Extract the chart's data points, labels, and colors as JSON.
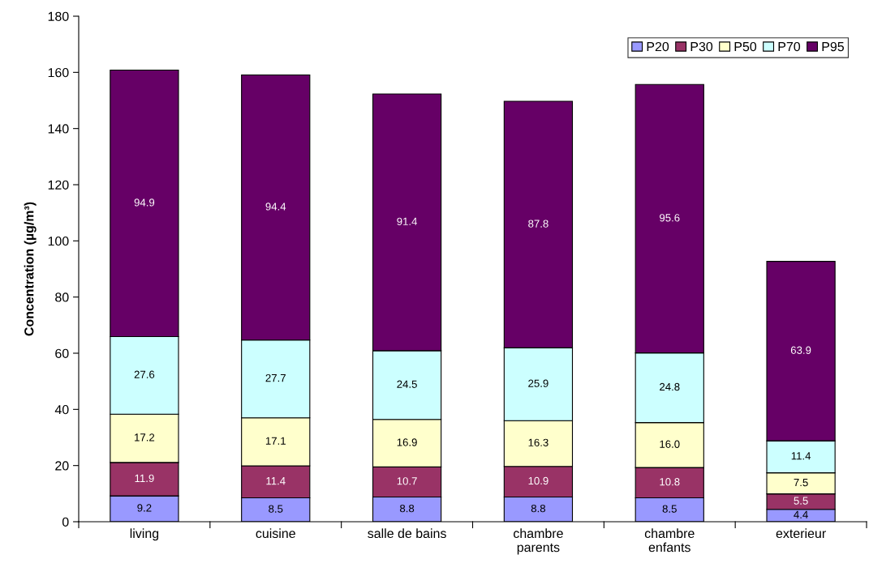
{
  "chart_data": {
    "type": "bar",
    "stacked": true,
    "ylabel": "Concentration (µg/m³)",
    "categories": [
      "living",
      "cuisine",
      "salle de bains",
      "chambre\nparents",
      "chambre\nenfants",
      "exterieur"
    ],
    "series": [
      {
        "name": "P20",
        "color": "#9999ff",
        "values": [
          9.2,
          8.5,
          8.8,
          8.8,
          8.5,
          4.4
        ]
      },
      {
        "name": "P30",
        "color": "#993366",
        "values": [
          11.9,
          11.4,
          10.7,
          10.9,
          10.8,
          5.5
        ]
      },
      {
        "name": "P50",
        "color": "#ffffcc",
        "values": [
          17.2,
          17.1,
          16.9,
          16.3,
          16.0,
          7.5
        ],
        "value_labels": [
          "17.2",
          "17.1",
          "16.9",
          "16.3",
          "16.0",
          "7.5"
        ]
      },
      {
        "name": "P70",
        "color": "#ccffff",
        "values": [
          27.6,
          27.7,
          24.5,
          25.9,
          24.8,
          11.4
        ]
      },
      {
        "name": "P95",
        "color": "#660066",
        "values": [
          94.9,
          94.4,
          91.4,
          87.8,
          95.6,
          63.9
        ]
      }
    ],
    "ylim": [
      0,
      180
    ],
    "yticks": [
      0,
      20,
      40,
      60,
      80,
      100,
      120,
      140,
      160,
      180
    ],
    "data_labels": true,
    "legend": "top right",
    "grid": false
  }
}
